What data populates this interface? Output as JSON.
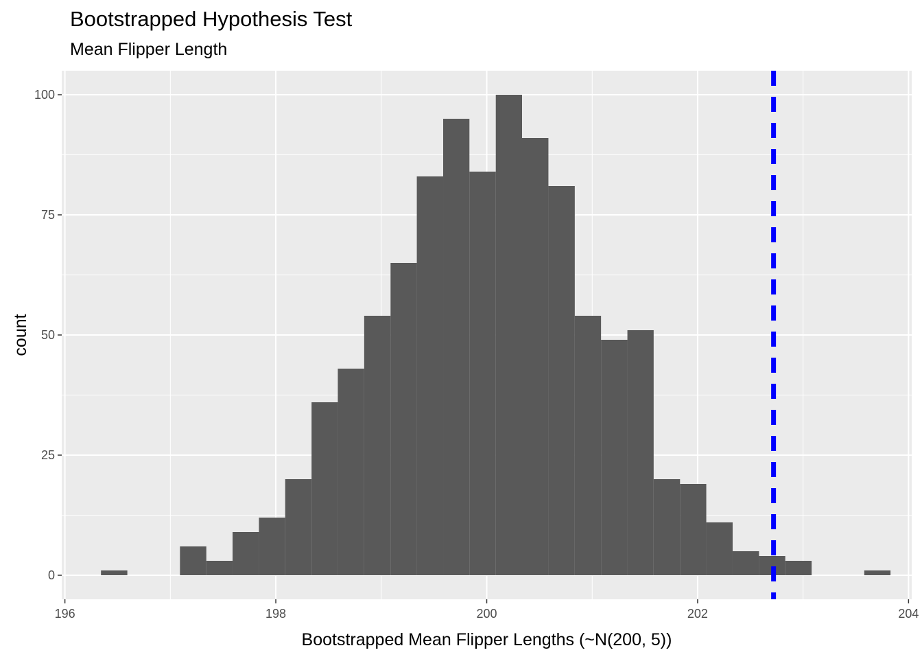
{
  "chart_data": {
    "type": "histogram",
    "title": "Bootstrapped Hypothesis Test",
    "subtitle": "Mean Flipper Length",
    "xlabel": "Bootstrapped Mean Flipper Lengths (~N(200, 5))",
    "ylabel": "count",
    "xlim": [
      195.97,
      204.03
    ],
    "ylim": [
      -5,
      105
    ],
    "x_ticks": [
      196,
      198,
      200,
      202,
      204
    ],
    "y_ticks": [
      0,
      25,
      50,
      75,
      100
    ],
    "bin_width": 0.2496,
    "bins": [
      {
        "x0": 196.342,
        "x1": 196.592,
        "count": 1
      },
      {
        "x0": 196.592,
        "x1": 196.841,
        "count": 0
      },
      {
        "x0": 196.841,
        "x1": 197.091,
        "count": 0
      },
      {
        "x0": 197.091,
        "x1": 197.341,
        "count": 6
      },
      {
        "x0": 197.341,
        "x1": 197.59,
        "count": 3
      },
      {
        "x0": 197.59,
        "x1": 197.84,
        "count": 9
      },
      {
        "x0": 197.84,
        "x1": 198.089,
        "count": 12
      },
      {
        "x0": 198.089,
        "x1": 198.339,
        "count": 20
      },
      {
        "x0": 198.339,
        "x1": 198.588,
        "count": 36
      },
      {
        "x0": 198.588,
        "x1": 198.838,
        "count": 43
      },
      {
        "x0": 198.838,
        "x1": 199.088,
        "count": 54
      },
      {
        "x0": 199.088,
        "x1": 199.337,
        "count": 65
      },
      {
        "x0": 199.337,
        "x1": 199.587,
        "count": 83
      },
      {
        "x0": 199.587,
        "x1": 199.836,
        "count": 95
      },
      {
        "x0": 199.836,
        "x1": 200.086,
        "count": 84
      },
      {
        "x0": 200.086,
        "x1": 200.335,
        "count": 100
      },
      {
        "x0": 200.335,
        "x1": 200.585,
        "count": 91
      },
      {
        "x0": 200.585,
        "x1": 200.835,
        "count": 81
      },
      {
        "x0": 200.835,
        "x1": 201.084,
        "count": 54
      },
      {
        "x0": 201.084,
        "x1": 201.334,
        "count": 49
      },
      {
        "x0": 201.334,
        "x1": 201.583,
        "count": 51
      },
      {
        "x0": 201.583,
        "x1": 201.833,
        "count": 20
      },
      {
        "x0": 201.833,
        "x1": 202.082,
        "count": 19
      },
      {
        "x0": 202.082,
        "x1": 202.332,
        "count": 11
      },
      {
        "x0": 202.332,
        "x1": 202.582,
        "count": 5
      },
      {
        "x0": 202.582,
        "x1": 202.831,
        "count": 4
      },
      {
        "x0": 202.831,
        "x1": 203.081,
        "count": 3
      },
      {
        "x0": 203.081,
        "x1": 203.33,
        "count": 0
      },
      {
        "x0": 203.33,
        "x1": 203.58,
        "count": 0
      },
      {
        "x0": 203.58,
        "x1": 203.829,
        "count": 1
      }
    ],
    "reference_line": {
      "x": 202.72,
      "style": "dashed",
      "color": "#0000ff"
    },
    "bar_color": "#595959",
    "panel_background": "#ebebeb",
    "grid": true,
    "legend": "none"
  }
}
